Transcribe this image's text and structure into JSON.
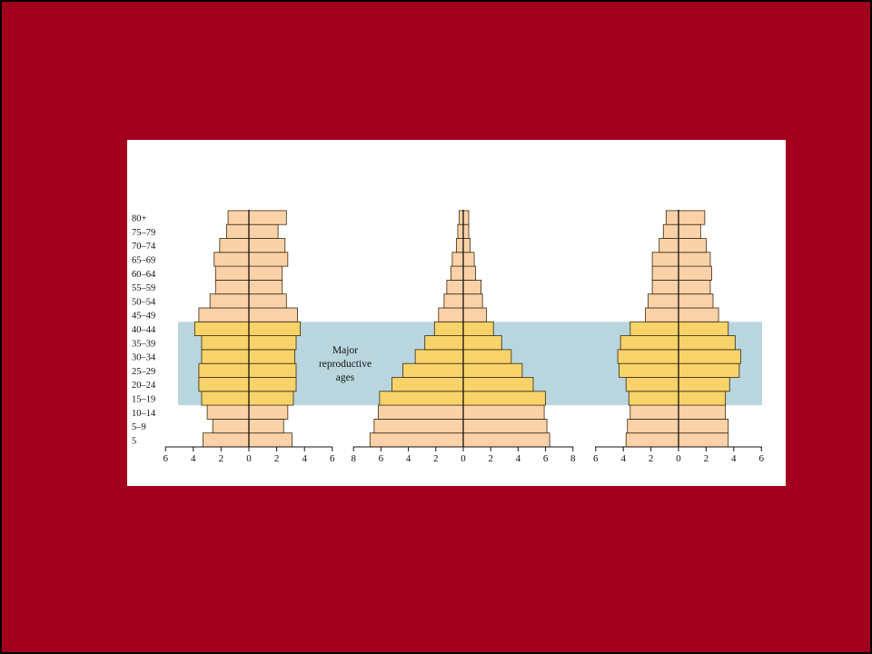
{
  "colors": {
    "background": "#a3001f",
    "panel": "#ffffff",
    "bar_normal": "#fbd2a8",
    "bar_reproductive": "#f7d36a",
    "highlight_band": "#b9d6de",
    "bar_stroke": "#3a2a10"
  },
  "annotation": {
    "line1": "Major",
    "line2": "reproductive",
    "line3": "ages"
  },
  "chart_data": [
    {
      "type": "bar",
      "orientation": "horizontal",
      "layout": "population-pyramid",
      "age_groups": [
        "5",
        "5–9",
        "10–14",
        "15–19",
        "20–24",
        "25–29",
        "30–34",
        "35–39",
        "40–44",
        "45–49",
        "50–54",
        "55–59",
        "60–64",
        "65–69",
        "70–74",
        "75–79",
        "80+"
      ],
      "reproductive_groups": [
        "15–19",
        "20–24",
        "25–29",
        "30–34",
        "35–39",
        "40–44"
      ],
      "series": [
        {
          "side": "left",
          "values": [
            3.3,
            2.6,
            3.0,
            3.4,
            3.6,
            3.6,
            3.4,
            3.4,
            3.9,
            3.6,
            2.8,
            2.4,
            2.4,
            2.5,
            2.1,
            1.6,
            1.5
          ]
        },
        {
          "side": "right",
          "values": [
            3.1,
            2.5,
            2.8,
            3.2,
            3.4,
            3.4,
            3.3,
            3.4,
            3.7,
            3.5,
            2.7,
            2.4,
            2.4,
            2.8,
            2.6,
            2.1,
            2.7
          ]
        }
      ],
      "xticks": [
        "6",
        "4",
        "2",
        "0",
        "2",
        "4",
        "6"
      ],
      "xlim": [
        -6,
        6
      ]
    },
    {
      "type": "bar",
      "orientation": "horizontal",
      "layout": "population-pyramid",
      "age_groups": [
        "5",
        "5–9",
        "10–14",
        "15–19",
        "20–24",
        "25–29",
        "30–34",
        "35–39",
        "40–44",
        "45–49",
        "50–54",
        "55–59",
        "60–64",
        "65–69",
        "70–74",
        "75–79",
        "80+"
      ],
      "reproductive_groups": [
        "15–19",
        "20–24",
        "25–29",
        "30–34",
        "35–39",
        "40–44"
      ],
      "series": [
        {
          "side": "left",
          "values": [
            6.8,
            6.5,
            6.2,
            6.1,
            5.2,
            4.4,
            3.5,
            2.8,
            2.1,
            1.8,
            1.4,
            1.2,
            0.9,
            0.8,
            0.5,
            0.4,
            0.3
          ]
        },
        {
          "side": "right",
          "values": [
            6.3,
            6.1,
            5.9,
            6.0,
            5.1,
            4.3,
            3.5,
            2.8,
            2.2,
            1.7,
            1.4,
            1.3,
            0.9,
            0.8,
            0.5,
            0.4,
            0.4
          ]
        }
      ],
      "xticks": [
        "8",
        "6",
        "4",
        "2",
        "0",
        "2",
        "4",
        "6",
        "8"
      ],
      "xlim": [
        -8,
        8
      ]
    },
    {
      "type": "bar",
      "orientation": "horizontal",
      "layout": "population-pyramid",
      "age_groups": [
        "5",
        "5–9",
        "10–14",
        "15–19",
        "20–24",
        "25–29",
        "30–34",
        "35–39",
        "40–44",
        "45–49",
        "50–54",
        "55–59",
        "60–64",
        "65–69",
        "70–74",
        "75–79",
        "80+"
      ],
      "reproductive_groups": [
        "15–19",
        "20–24",
        "25–29",
        "30–34",
        "35–39",
        "40–44"
      ],
      "series": [
        {
          "side": "left",
          "values": [
            3.8,
            3.7,
            3.5,
            3.6,
            3.8,
            4.3,
            4.4,
            4.2,
            3.5,
            2.4,
            2.2,
            1.9,
            1.9,
            1.9,
            1.4,
            1.1,
            0.9
          ]
        },
        {
          "side": "right",
          "values": [
            3.6,
            3.6,
            3.4,
            3.4,
            3.7,
            4.4,
            4.5,
            4.1,
            3.6,
            2.9,
            2.5,
            2.3,
            2.4,
            2.3,
            2.0,
            1.6,
            1.9
          ]
        }
      ],
      "xticks": [
        "6",
        "4",
        "2",
        "0",
        "2",
        "4",
        "6"
      ],
      "xlim": [
        -6,
        6
      ]
    }
  ]
}
